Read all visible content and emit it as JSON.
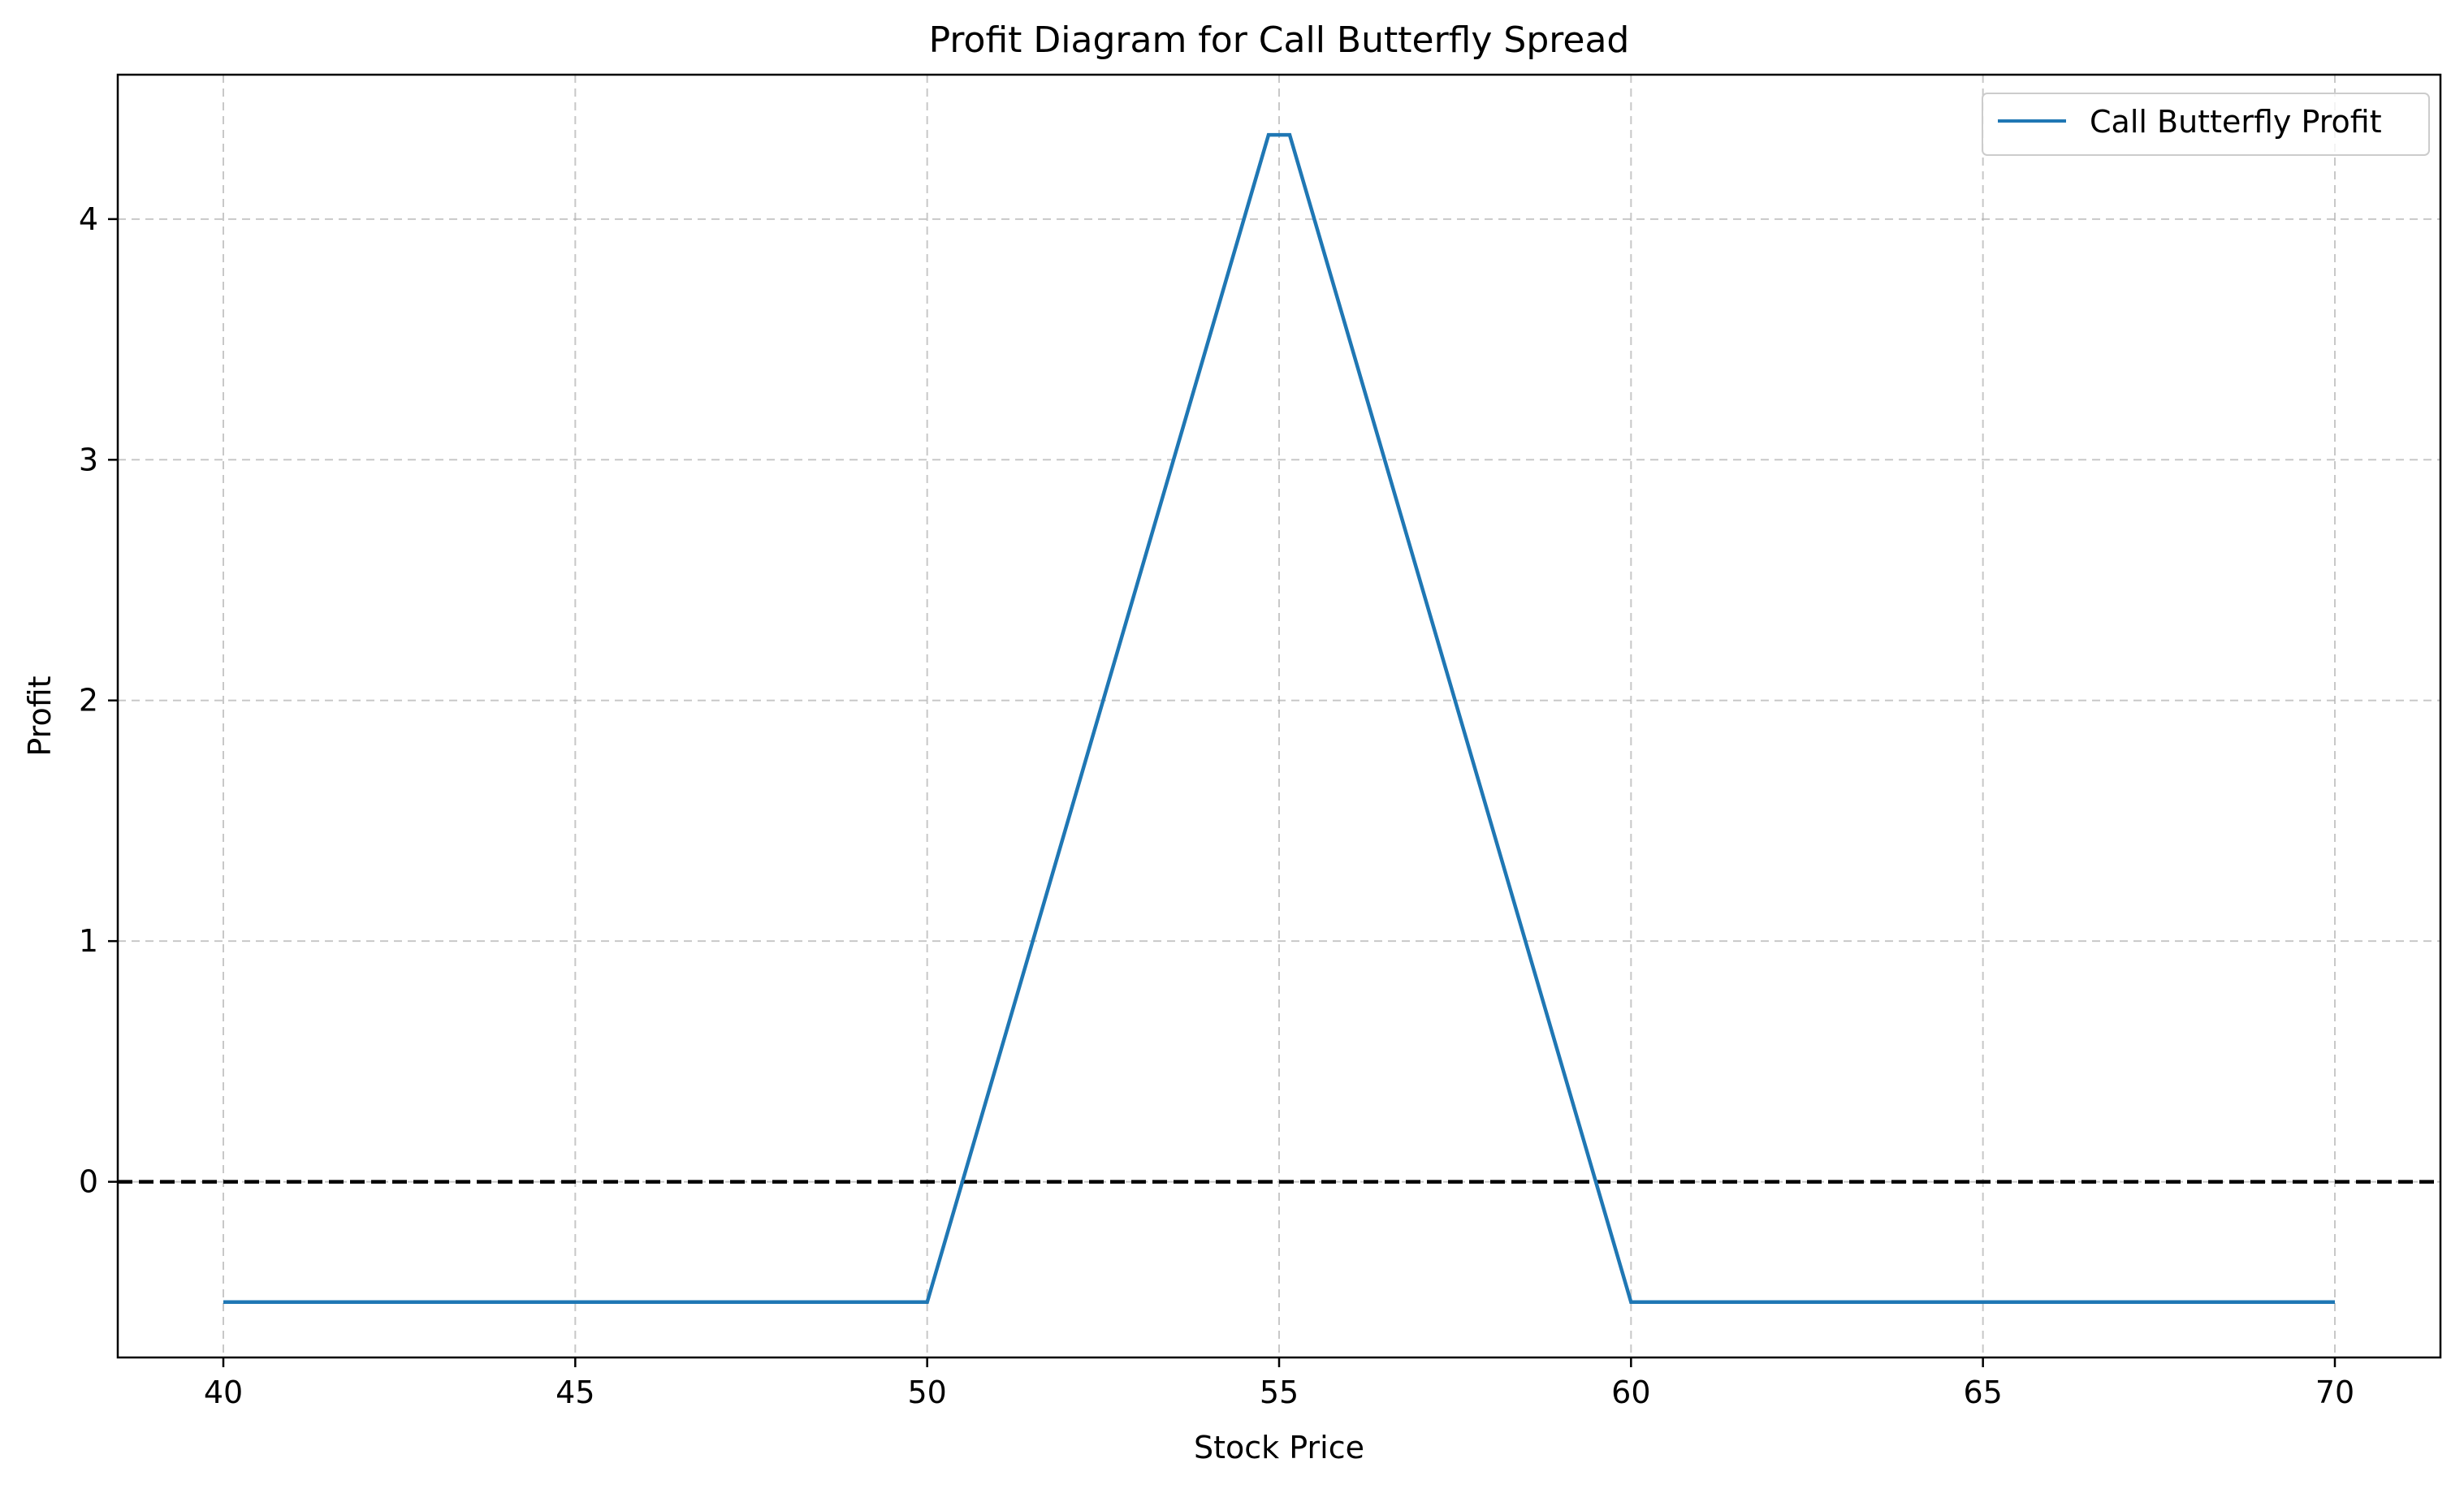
{
  "chart_data": {
    "type": "line",
    "title": "Profit Diagram for Call Butterfly Spread",
    "xlabel": "Stock Price",
    "ylabel": "Profit",
    "xlim": [
      38.5,
      71.5
    ],
    "ylim": [
      -0.73,
      4.6
    ],
    "xticks": [
      40,
      45,
      50,
      55,
      60,
      65,
      70
    ],
    "yticks": [
      0,
      1,
      2,
      3,
      4
    ],
    "grid": true,
    "legend_position": "top-right",
    "series": [
      {
        "name": "Call Butterfly Profit",
        "color": "#1f77b4",
        "x": [
          40,
          50,
          54.85,
          55.15,
          60,
          70
        ],
        "y": [
          -0.5,
          -0.5,
          4.35,
          4.35,
          -0.5,
          -0.5
        ]
      }
    ],
    "reference_line": {
      "y": 0,
      "style": "dashed",
      "color": "#000000"
    }
  }
}
